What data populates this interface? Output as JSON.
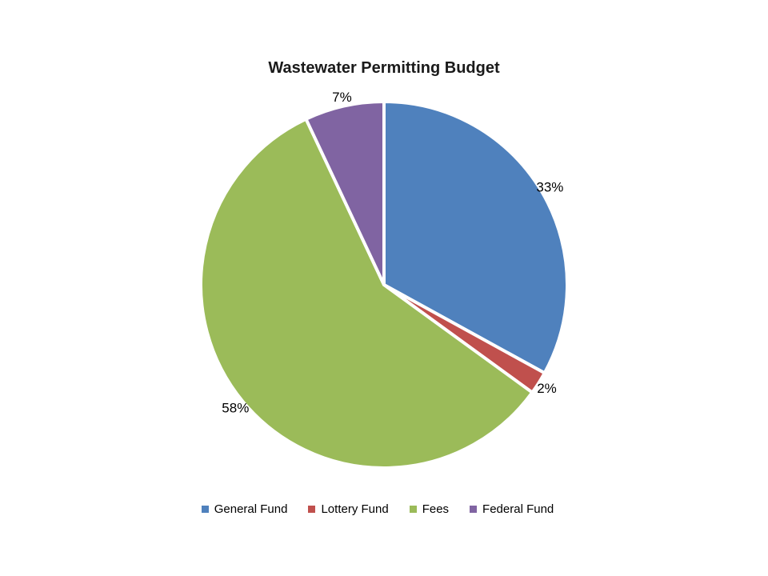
{
  "title": "Wastewater Permitting Budget",
  "chart_data": {
    "type": "pie",
    "title": "Wastewater Permitting Budget",
    "start_angle_deg": 0,
    "direction": "clockwise",
    "legend_position": "bottom",
    "background_color": "#FFFFFF",
    "slice_border_color": "#FFFFFF",
    "slices": [
      {
        "name": "General Fund",
        "value": 33,
        "label": "33%",
        "color": "#4F81BD"
      },
      {
        "name": "Lottery Fund",
        "value": 2,
        "label": "2%",
        "color": "#C0504D"
      },
      {
        "name": "Fees",
        "value": 58,
        "label": "58%",
        "color": "#9BBB59"
      },
      {
        "name": "Federal Fund",
        "value": 7,
        "label": "7%",
        "color": "#8064A2"
      }
    ]
  }
}
